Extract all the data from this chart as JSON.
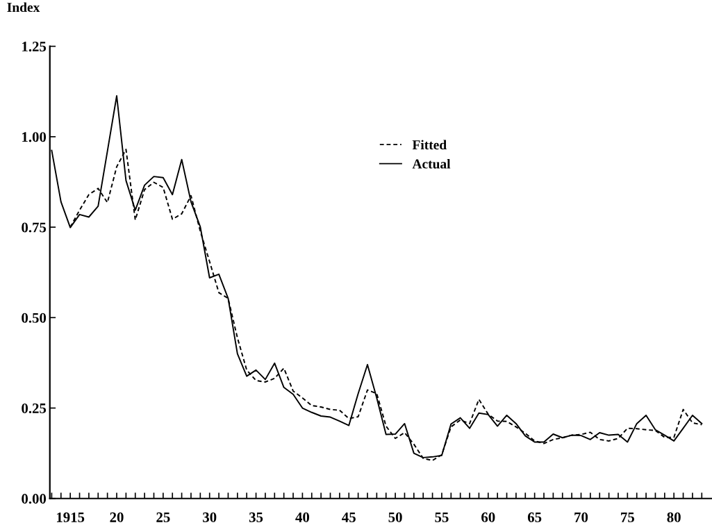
{
  "chart_data": {
    "type": "line",
    "ylabel": "Index",
    "xlim": [
      1912.8,
      1984.1
    ],
    "ylim": [
      0,
      1.25
    ],
    "yticks": [
      {
        "value": 0,
        "label": "0.00"
      },
      {
        "value": 0.25,
        "label": "0.25"
      },
      {
        "value": 0.5,
        "label": "0.50"
      },
      {
        "value": 0.75,
        "label": "0.75"
      },
      {
        "value": 1.0,
        "label": "1.00"
      },
      {
        "value": 1.25,
        "label": "1.25"
      }
    ],
    "xticks": [
      {
        "value": 1913,
        "label": null
      },
      {
        "value": 1914,
        "label": null
      },
      {
        "value": 1915,
        "label": "1915"
      },
      {
        "value": 1916,
        "label": null
      },
      {
        "value": 1917,
        "label": null
      },
      {
        "value": 1918,
        "label": null
      },
      {
        "value": 1919,
        "label": null
      },
      {
        "value": 1920,
        "label": "20"
      },
      {
        "value": 1921,
        "label": null
      },
      {
        "value": 1922,
        "label": null
      },
      {
        "value": 1923,
        "label": null
      },
      {
        "value": 1924,
        "label": null
      },
      {
        "value": 1925,
        "label": "25"
      },
      {
        "value": 1926,
        "label": null
      },
      {
        "value": 1927,
        "label": null
      },
      {
        "value": 1928,
        "label": null
      },
      {
        "value": 1929,
        "label": null
      },
      {
        "value": 1930,
        "label": "30"
      },
      {
        "value": 1931,
        "label": null
      },
      {
        "value": 1932,
        "label": null
      },
      {
        "value": 1933,
        "label": null
      },
      {
        "value": 1934,
        "label": null
      },
      {
        "value": 1935,
        "label": "35"
      },
      {
        "value": 1936,
        "label": null
      },
      {
        "value": 1937,
        "label": null
      },
      {
        "value": 1938,
        "label": null
      },
      {
        "value": 1939,
        "label": null
      },
      {
        "value": 1940,
        "label": "40"
      },
      {
        "value": 1941,
        "label": null
      },
      {
        "value": 1942,
        "label": null
      },
      {
        "value": 1943,
        "label": null
      },
      {
        "value": 1944,
        "label": null
      },
      {
        "value": 1945,
        "label": "45"
      },
      {
        "value": 1946,
        "label": null
      },
      {
        "value": 1947,
        "label": null
      },
      {
        "value": 1948,
        "label": null
      },
      {
        "value": 1949,
        "label": null
      },
      {
        "value": 1950,
        "label": "50"
      },
      {
        "value": 1951,
        "label": null
      },
      {
        "value": 1952,
        "label": null
      },
      {
        "value": 1953,
        "label": null
      },
      {
        "value": 1954,
        "label": null
      },
      {
        "value": 1955,
        "label": "55"
      },
      {
        "value": 1956,
        "label": null
      },
      {
        "value": 1957,
        "label": null
      },
      {
        "value": 1958,
        "label": null
      },
      {
        "value": 1959,
        "label": null
      },
      {
        "value": 1960,
        "label": "60"
      },
      {
        "value": 1961,
        "label": null
      },
      {
        "value": 1962,
        "label": null
      },
      {
        "value": 1963,
        "label": null
      },
      {
        "value": 1964,
        "label": null
      },
      {
        "value": 1965,
        "label": "65"
      },
      {
        "value": 1966,
        "label": null
      },
      {
        "value": 1967,
        "label": null
      },
      {
        "value": 1968,
        "label": null
      },
      {
        "value": 1969,
        "label": null
      },
      {
        "value": 1970,
        "label": "70"
      },
      {
        "value": 1971,
        "label": null
      },
      {
        "value": 1972,
        "label": null
      },
      {
        "value": 1973,
        "label": null
      },
      {
        "value": 1974,
        "label": null
      },
      {
        "value": 1975,
        "label": "75"
      },
      {
        "value": 1976,
        "label": null
      },
      {
        "value": 1977,
        "label": null
      },
      {
        "value": 1978,
        "label": null
      },
      {
        "value": 1979,
        "label": null
      },
      {
        "value": 1980,
        "label": "80"
      },
      {
        "value": 1981,
        "label": null
      },
      {
        "value": 1982,
        "label": null
      },
      {
        "value": 1983,
        "label": null
      }
    ],
    "grid": false,
    "legend": "top",
    "marker": "none",
    "series": [
      {
        "name": "Fitted",
        "color": "#000000",
        "line_style": "dashed",
        "x": [
          1915,
          1916,
          1917,
          1918,
          1919,
          1920,
          1921,
          1922,
          1923,
          1924,
          1925,
          1926,
          1927,
          1928,
          1929,
          1930,
          1931,
          1932,
          1933,
          1934,
          1935,
          1936,
          1937,
          1938,
          1939,
          1940,
          1941,
          1942,
          1943,
          1944,
          1945,
          1946,
          1947,
          1948,
          1949,
          1950,
          1951,
          1952,
          1953,
          1954,
          1955,
          1956,
          1957,
          1958,
          1959,
          1960,
          1961,
          1962,
          1963,
          1964,
          1965,
          1966,
          1967,
          1968,
          1969,
          1970,
          1971,
          1972,
          1973,
          1974,
          1975,
          1976,
          1977,
          1978,
          1979,
          1980,
          1981,
          1982,
          1983
        ],
        "values": [
          0.75,
          0.797,
          0.84,
          0.857,
          0.818,
          0.917,
          0.965,
          0.77,
          0.854,
          0.874,
          0.86,
          0.772,
          0.787,
          0.837,
          0.739,
          0.655,
          0.569,
          0.553,
          0.444,
          0.355,
          0.326,
          0.322,
          0.332,
          0.36,
          0.297,
          0.278,
          0.257,
          0.253,
          0.246,
          0.244,
          0.221,
          0.226,
          0.3,
          0.29,
          0.2,
          0.166,
          0.182,
          0.15,
          0.111,
          0.105,
          0.121,
          0.198,
          0.217,
          0.207,
          0.274,
          0.233,
          0.214,
          0.213,
          0.198,
          0.18,
          0.159,
          0.152,
          0.163,
          0.168,
          0.175,
          0.177,
          0.183,
          0.163,
          0.159,
          0.166,
          0.194,
          0.193,
          0.19,
          0.188,
          0.169,
          0.169,
          0.246,
          0.209,
          0.204
        ]
      },
      {
        "name": "Actual",
        "color": "#000000",
        "line_style": "solid",
        "x": [
          1913,
          1914,
          1915,
          1916,
          1917,
          1918,
          1919,
          1920,
          1921,
          1922,
          1923,
          1924,
          1925,
          1926,
          1927,
          1928,
          1929,
          1930,
          1931,
          1932,
          1933,
          1934,
          1935,
          1936,
          1937,
          1938,
          1939,
          1940,
          1941,
          1942,
          1943,
          1944,
          1945,
          1946,
          1947,
          1948,
          1949,
          1950,
          1951,
          1952,
          1953,
          1954,
          1955,
          1956,
          1957,
          1958,
          1959,
          1960,
          1961,
          1962,
          1963,
          1964,
          1965,
          1966,
          1967,
          1968,
          1969,
          1970,
          1971,
          1972,
          1973,
          1974,
          1975,
          1976,
          1977,
          1978,
          1979,
          1980,
          1981,
          1982,
          1983
        ],
        "values": [
          0.962,
          0.82,
          0.749,
          0.785,
          0.778,
          0.808,
          0.96,
          1.113,
          0.879,
          0.797,
          0.866,
          0.89,
          0.887,
          0.84,
          0.937,
          0.82,
          0.751,
          0.61,
          0.62,
          0.553,
          0.4,
          0.338,
          0.355,
          0.329,
          0.374,
          0.307,
          0.288,
          0.25,
          0.238,
          0.228,
          0.225,
          0.214,
          0.202,
          0.29,
          0.37,
          0.278,
          0.177,
          0.178,
          0.207,
          0.125,
          0.113,
          0.115,
          0.119,
          0.206,
          0.223,
          0.194,
          0.236,
          0.232,
          0.2,
          0.23,
          0.207,
          0.173,
          0.156,
          0.156,
          0.178,
          0.168,
          0.175,
          0.174,
          0.163,
          0.182,
          0.175,
          0.177,
          0.156,
          0.207,
          0.23,
          0.19,
          0.175,
          0.159,
          0.194,
          0.23,
          0.207
        ]
      }
    ]
  }
}
